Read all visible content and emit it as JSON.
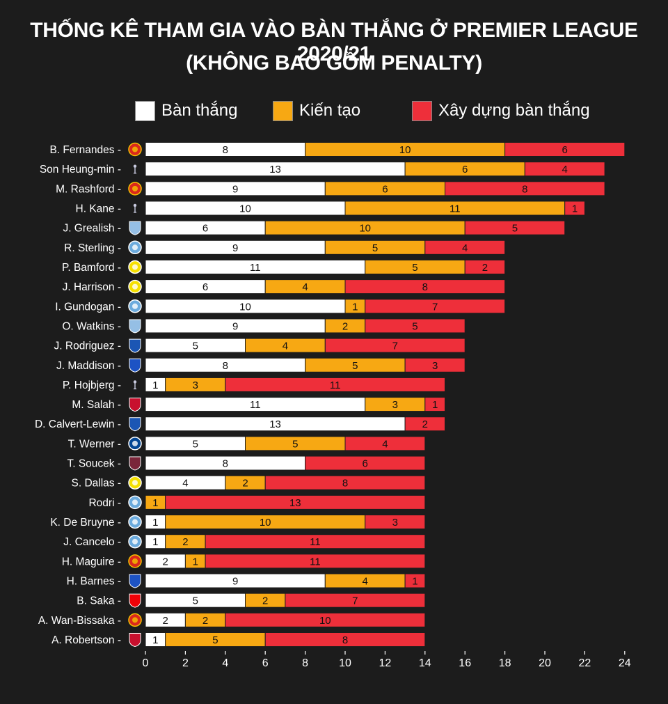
{
  "title_line1": "THỐNG KÊ THAM GIA VÀO BÀN THẮNG Ở PREMIER LEAGUE 2020/21",
  "title_line2": "(KHÔNG BAO GỒM PENALTY)",
  "colors": {
    "goals": "#ffffff",
    "assists": "#f7a813",
    "buildup": "#ee2f3a",
    "background": "#1c1c1c"
  },
  "club_colors": {
    "man-utd": "#da291c",
    "tottenham": "#e8e8f0",
    "aston-villa": "#95bfe5",
    "man-city": "#6cabdd",
    "leeds": "#f5e000",
    "everton": "#1b56b4",
    "leicester": "#1d53c4",
    "liverpool": "#c8102e",
    "chelsea": "#034694",
    "west-ham": "#7a263a",
    "arsenal": "#ef0107"
  },
  "chart_data": {
    "type": "bar",
    "orientation": "horizontal",
    "stacked": true,
    "title": "THỐNG KÊ THAM GIA VÀO BÀN THẮNG Ở PREMIER LEAGUE 2020/21 (KHÔNG BAO GỒM PENALTY)",
    "legend_position": "top",
    "xlim": [
      0,
      24
    ],
    "xticks": [
      0,
      2,
      4,
      6,
      8,
      10,
      12,
      14,
      16,
      18,
      20,
      22,
      24
    ],
    "grid": false,
    "categories": [
      "B. Fernandes",
      "Son Heung-min",
      "M. Rashford",
      "H. Kane",
      "J. Grealish",
      "R. Sterling",
      "P. Bamford",
      "J. Harrison",
      "I. Gundogan",
      "O. Watkins",
      "J. Rodriguez",
      "J. Maddison",
      "P. Hojbjerg",
      "M. Salah",
      "D. Calvert-Lewin",
      "T. Werner",
      "T. Soucek",
      "S. Dallas",
      "Rodri",
      "K. De Bruyne",
      "J. Cancelo",
      "H. Maguire",
      "H. Barnes",
      "B. Saka",
      "A. Wan-Bissaka",
      "A. Robertson"
    ],
    "clubs": [
      "man-utd",
      "tottenham",
      "man-utd",
      "tottenham",
      "aston-villa",
      "man-city",
      "leeds",
      "leeds",
      "man-city",
      "aston-villa",
      "everton",
      "leicester",
      "tottenham",
      "liverpool",
      "everton",
      "chelsea",
      "west-ham",
      "leeds",
      "man-city",
      "man-city",
      "man-city",
      "man-utd",
      "leicester",
      "arsenal",
      "man-utd",
      "liverpool"
    ],
    "series": [
      {
        "name": "Bàn thắng",
        "color": "#ffffff",
        "values": [
          8,
          13,
          9,
          10,
          6,
          9,
          11,
          6,
          10,
          9,
          5,
          8,
          1,
          11,
          13,
          5,
          8,
          4,
          0,
          1,
          1,
          2,
          9,
          5,
          2,
          1
        ]
      },
      {
        "name": "Kiến tạo",
        "color": "#f7a813",
        "values": [
          10,
          6,
          6,
          11,
          10,
          5,
          5,
          4,
          1,
          2,
          4,
          5,
          3,
          3,
          0,
          5,
          0,
          2,
          1,
          10,
          2,
          1,
          4,
          2,
          2,
          5
        ]
      },
      {
        "name": "Xây dựng bàn thắng",
        "color": "#ee2f3a",
        "values": [
          6,
          4,
          8,
          1,
          5,
          4,
          2,
          8,
          7,
          5,
          7,
          3,
          11,
          1,
          2,
          4,
          6,
          8,
          13,
          3,
          11,
          11,
          1,
          7,
          10,
          8
        ]
      }
    ]
  }
}
